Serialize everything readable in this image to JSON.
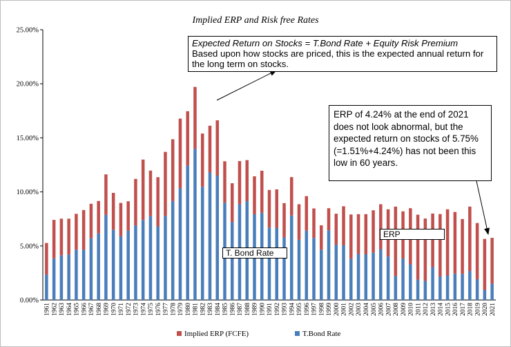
{
  "chart_data": {
    "type": "bar",
    "stacked": true,
    "title": "Implied ERP and Risk free Rates",
    "xlabel": "",
    "ylabel": "",
    "ylim": [
      0,
      25
    ],
    "y_ticks": [
      "0.00%",
      "5.00%",
      "10.00%",
      "15.00%",
      "20.00%",
      "25.00%"
    ],
    "y_tick_values": [
      0,
      5,
      10,
      15,
      20,
      25
    ],
    "grid": false,
    "legend_position": "bottom",
    "categories": [
      "1961",
      "1962",
      "1963",
      "1964",
      "1965",
      "1966",
      "1967",
      "1968",
      "1969",
      "1970",
      "1971",
      "1972",
      "1973",
      "1974",
      "1975",
      "1976",
      "1977",
      "1978",
      "1979",
      "1980",
      "1981",
      "1982",
      "1983",
      "1984",
      "1985",
      "1986",
      "1987",
      "1988",
      "1989",
      "1990",
      "1991",
      "1992",
      "1993",
      "1994",
      "1995",
      "1996",
      "1997",
      "1998",
      "1999",
      "2000",
      "2001",
      "2002",
      "2003",
      "2004",
      "2005",
      "2006",
      "2007",
      "2008",
      "2009",
      "2010",
      "2011",
      "2012",
      "2013",
      "2014",
      "2015",
      "2016",
      "2017",
      "2018",
      "2019",
      "2020",
      "2021"
    ],
    "series": [
      {
        "name": "T.Bond Rate",
        "color": "#4a7ebb",
        "values": [
          2.35,
          3.85,
          4.14,
          4.21,
          4.65,
          4.64,
          5.7,
          6.16,
          7.88,
          6.5,
          5.89,
          6.41,
          6.9,
          7.4,
          7.76,
          6.81,
          7.78,
          9.15,
          10.33,
          12.43,
          13.98,
          10.47,
          11.8,
          11.51,
          8.99,
          7.22,
          8.86,
          9.14,
          7.93,
          8.07,
          6.7,
          6.68,
          5.79,
          7.82,
          5.57,
          6.41,
          5.74,
          4.65,
          6.44,
          5.11,
          5.05,
          3.81,
          4.25,
          4.22,
          4.39,
          4.7,
          4.02,
          2.21,
          3.84,
          3.29,
          1.88,
          1.76,
          3.04,
          2.17,
          2.27,
          2.45,
          2.41,
          2.68,
          1.92,
          0.93,
          1.51
        ]
      },
      {
        "name": "Implied ERP (FCFE)",
        "color": "#c0504d",
        "values": [
          2.92,
          3.56,
          3.38,
          3.31,
          3.32,
          3.68,
          3.2,
          3.0,
          3.74,
          3.41,
          3.09,
          2.72,
          4.3,
          5.59,
          4.21,
          4.55,
          5.92,
          5.72,
          6.45,
          5.03,
          5.73,
          4.93,
          4.32,
          5.11,
          3.84,
          3.58,
          3.99,
          3.8,
          3.51,
          3.89,
          3.48,
          3.55,
          3.17,
          3.55,
          3.29,
          3.2,
          2.73,
          2.26,
          2.05,
          2.87,
          3.62,
          4.1,
          3.69,
          3.72,
          3.91,
          4.16,
          4.37,
          6.43,
          4.36,
          5.2,
          6.01,
          5.78,
          4.96,
          5.78,
          6.12,
          5.69,
          5.08,
          5.96,
          5.2,
          4.72,
          4.24
        ]
      }
    ],
    "annotations": {
      "formula_line": "Expected Return on Stocks = T.Bond Rate + Equity Risk Premium",
      "formula_text": "Based upon how stocks are priced, this is the expected annual return for the long term on stocks.",
      "erp_note": "ERP of 4.24% at the end of 2021 does not look abnormal, but the expected return on stocks of 5.75% (=1.51%+4.24%) has not been this low in 60 years.",
      "tbond_label": "T. Bond Rate",
      "erp_label": "ERP"
    },
    "legend": [
      "Implied ERP (FCFE)",
      "T.Bond Rate"
    ]
  }
}
